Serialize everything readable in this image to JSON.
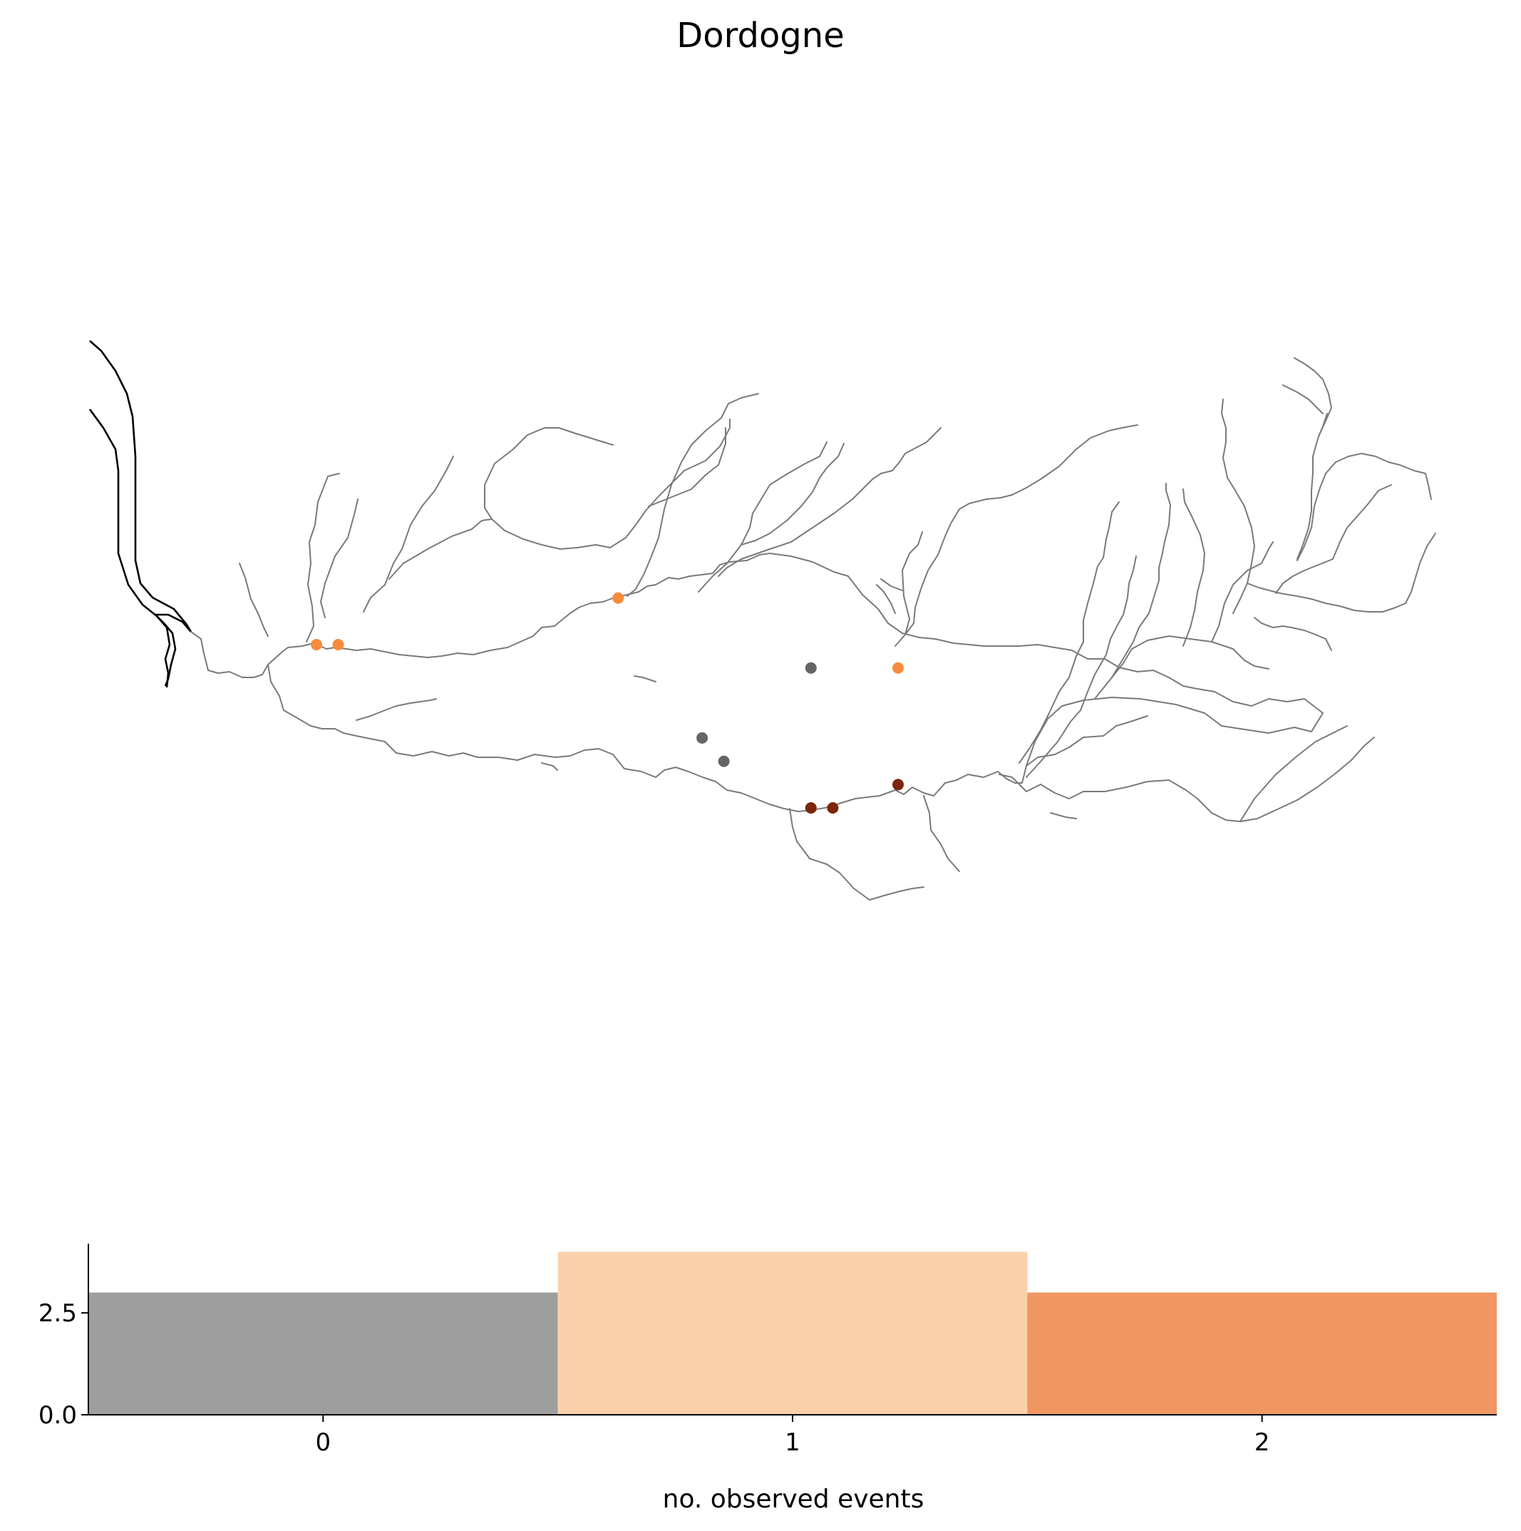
{
  "title": "Dordogne",
  "colors": {
    "river": "#7a7a7a",
    "estuary": "#000000",
    "events_0": "#666666",
    "events_1": "#f68c3c",
    "events_2": "#7a260a",
    "hist_0": "#9e9e9e",
    "hist_1": "#fbd1ab",
    "hist_2": "#f09762"
  },
  "stations": [
    {
      "lon": -0.59,
      "lat": 44.84,
      "events": 1
    },
    {
      "lon": -0.52,
      "lat": 44.84,
      "events": 1
    },
    {
      "lon": 0.38,
      "lat": 44.98,
      "events": 1
    },
    {
      "lon": 1.28,
      "lat": 44.77,
      "events": 1
    },
    {
      "lon": 1.0,
      "lat": 44.77,
      "events": 0
    },
    {
      "lon": 0.65,
      "lat": 44.56,
      "events": 0
    },
    {
      "lon": 0.72,
      "lat": 44.49,
      "events": 0
    },
    {
      "lon": 1.0,
      "lat": 44.35,
      "events": 2
    },
    {
      "lon": 1.07,
      "lat": 44.35,
      "events": 2
    },
    {
      "lon": 1.28,
      "lat": 44.42,
      "events": 2
    }
  ],
  "chart_data": {
    "type": "bar",
    "categories": [
      "0",
      "1",
      "2"
    ],
    "values": [
      3,
      4,
      3
    ],
    "xlabel": "no. observed events",
    "ylabel": "",
    "xticks": [
      "0",
      "1",
      "2"
    ],
    "yticks": [
      "0.0",
      "2.5"
    ],
    "ylim": [
      0,
      4.2
    ]
  }
}
